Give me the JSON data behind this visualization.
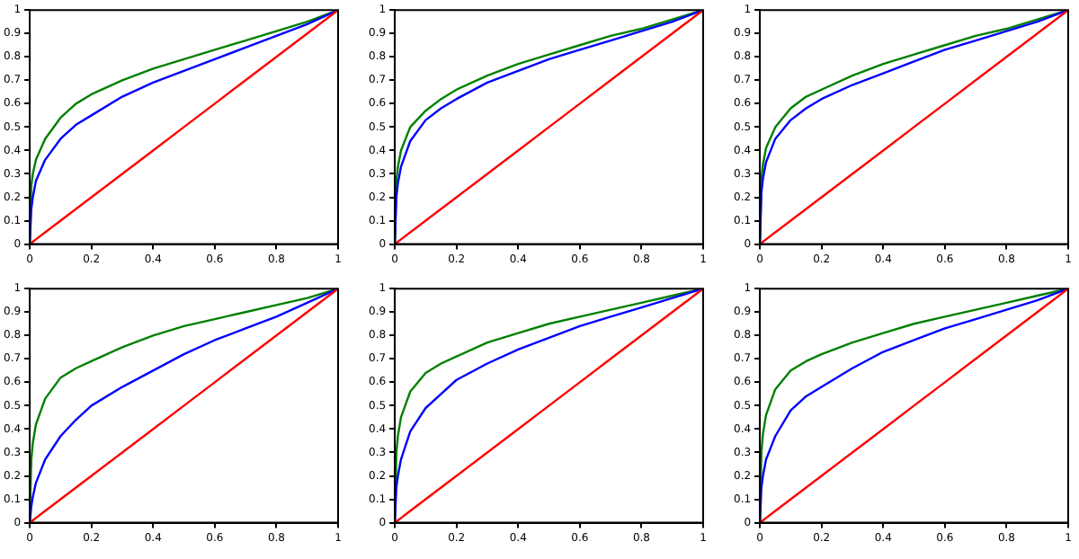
{
  "chart_data": [
    {
      "type": "line",
      "x": [
        0,
        0.005,
        0.01,
        0.02,
        0.05,
        0.1,
        0.15,
        0.2,
        0.3,
        0.4,
        0.5,
        0.6,
        0.7,
        0.8,
        0.9,
        1
      ],
      "xlim": [
        0,
        1
      ],
      "ylim": [
        0,
        1
      ],
      "xticks": [
        0,
        0.2,
        0.4,
        0.6,
        0.8,
        1
      ],
      "yticks": [
        0,
        0.1,
        0.2,
        0.3,
        0.4,
        0.5,
        0.6,
        0.7,
        0.8,
        0.9,
        1
      ],
      "series": [
        {
          "color": "#ff0000",
          "values": [
            0,
            0.005,
            0.01,
            0.02,
            0.05,
            0.1,
            0.15,
            0.2,
            0.3,
            0.4,
            0.5,
            0.6,
            0.7,
            0.8,
            0.9,
            1
          ]
        },
        {
          "color": "#0000ff",
          "values": [
            0,
            0.15,
            0.2,
            0.27,
            0.36,
            0.45,
            0.51,
            0.55,
            0.63,
            0.69,
            0.74,
            0.79,
            0.84,
            0.89,
            0.94,
            1
          ]
        },
        {
          "color": "#008000",
          "values": [
            0,
            0.25,
            0.3,
            0.36,
            0.45,
            0.54,
            0.6,
            0.64,
            0.7,
            0.75,
            0.79,
            0.83,
            0.87,
            0.91,
            0.95,
            1
          ]
        }
      ]
    },
    {
      "type": "line",
      "x": [
        0,
        0.005,
        0.01,
        0.02,
        0.05,
        0.1,
        0.15,
        0.2,
        0.3,
        0.4,
        0.5,
        0.6,
        0.7,
        0.8,
        0.9,
        1
      ],
      "xlim": [
        0,
        1
      ],
      "ylim": [
        0,
        1
      ],
      "xticks": [
        0,
        0.2,
        0.4,
        0.6,
        0.8,
        1
      ],
      "yticks": [
        0,
        0.1,
        0.2,
        0.3,
        0.4,
        0.5,
        0.6,
        0.7,
        0.8,
        0.9,
        1
      ],
      "series": [
        {
          "color": "#ff0000",
          "values": [
            0,
            0.005,
            0.01,
            0.02,
            0.05,
            0.1,
            0.15,
            0.2,
            0.3,
            0.4,
            0.5,
            0.6,
            0.7,
            0.8,
            0.9,
            1
          ]
        },
        {
          "color": "#0000ff",
          "values": [
            0,
            0.2,
            0.26,
            0.33,
            0.44,
            0.53,
            0.58,
            0.62,
            0.69,
            0.74,
            0.79,
            0.83,
            0.87,
            0.91,
            0.95,
            1
          ]
        },
        {
          "color": "#008000",
          "values": [
            0,
            0.27,
            0.33,
            0.4,
            0.5,
            0.57,
            0.62,
            0.66,
            0.72,
            0.77,
            0.81,
            0.85,
            0.89,
            0.92,
            0.96,
            1
          ]
        }
      ]
    },
    {
      "type": "line",
      "x": [
        0,
        0.005,
        0.01,
        0.02,
        0.05,
        0.1,
        0.15,
        0.2,
        0.3,
        0.4,
        0.5,
        0.6,
        0.7,
        0.8,
        0.9,
        1
      ],
      "xlim": [
        0,
        1
      ],
      "ylim": [
        0,
        1
      ],
      "xticks": [
        0,
        0.2,
        0.4,
        0.6,
        0.8,
        1
      ],
      "yticks": [
        0,
        0.1,
        0.2,
        0.3,
        0.4,
        0.5,
        0.6,
        0.7,
        0.8,
        0.9,
        1
      ],
      "series": [
        {
          "color": "#ff0000",
          "values": [
            0,
            0.005,
            0.01,
            0.02,
            0.05,
            0.1,
            0.15,
            0.2,
            0.3,
            0.4,
            0.5,
            0.6,
            0.7,
            0.8,
            0.9,
            1
          ]
        },
        {
          "color": "#0000ff",
          "values": [
            0,
            0.22,
            0.28,
            0.35,
            0.45,
            0.53,
            0.58,
            0.62,
            0.68,
            0.73,
            0.78,
            0.83,
            0.87,
            0.91,
            0.95,
            1
          ]
        },
        {
          "color": "#008000",
          "values": [
            0,
            0.28,
            0.34,
            0.41,
            0.5,
            0.58,
            0.63,
            0.66,
            0.72,
            0.77,
            0.81,
            0.85,
            0.89,
            0.92,
            0.96,
            1
          ]
        }
      ]
    },
    {
      "type": "line",
      "x": [
        0,
        0.005,
        0.01,
        0.02,
        0.05,
        0.1,
        0.15,
        0.2,
        0.3,
        0.4,
        0.5,
        0.6,
        0.7,
        0.8,
        0.9,
        1
      ],
      "xlim": [
        0,
        1
      ],
      "ylim": [
        0,
        1
      ],
      "xticks": [
        0,
        0.2,
        0.4,
        0.6,
        0.8,
        1
      ],
      "yticks": [
        0,
        0.1,
        0.2,
        0.3,
        0.4,
        0.5,
        0.6,
        0.7,
        0.8,
        0.9,
        1
      ],
      "series": [
        {
          "color": "#ff0000",
          "values": [
            0,
            0.005,
            0.01,
            0.02,
            0.05,
            0.1,
            0.15,
            0.2,
            0.3,
            0.4,
            0.5,
            0.6,
            0.7,
            0.8,
            0.9,
            1
          ]
        },
        {
          "color": "#0000ff",
          "values": [
            0,
            0.07,
            0.11,
            0.17,
            0.27,
            0.37,
            0.44,
            0.5,
            0.58,
            0.65,
            0.72,
            0.78,
            0.83,
            0.88,
            0.94,
            1
          ]
        },
        {
          "color": "#008000",
          "values": [
            0,
            0.27,
            0.34,
            0.42,
            0.53,
            0.62,
            0.66,
            0.69,
            0.75,
            0.8,
            0.84,
            0.87,
            0.9,
            0.93,
            0.96,
            1
          ]
        }
      ]
    },
    {
      "type": "line",
      "x": [
        0,
        0.005,
        0.01,
        0.02,
        0.05,
        0.1,
        0.15,
        0.2,
        0.3,
        0.4,
        0.5,
        0.6,
        0.7,
        0.8,
        0.9,
        1
      ],
      "xlim": [
        0,
        1
      ],
      "ylim": [
        0,
        1
      ],
      "xticks": [
        0,
        0.2,
        0.4,
        0.6,
        0.8,
        1
      ],
      "yticks": [
        0,
        0.1,
        0.2,
        0.3,
        0.4,
        0.5,
        0.6,
        0.7,
        0.8,
        0.9,
        1
      ],
      "series": [
        {
          "color": "#ff0000",
          "values": [
            0,
            0.005,
            0.01,
            0.02,
            0.05,
            0.1,
            0.15,
            0.2,
            0.3,
            0.4,
            0.5,
            0.6,
            0.7,
            0.8,
            0.9,
            1
          ]
        },
        {
          "color": "#0000ff",
          "values": [
            0,
            0.15,
            0.2,
            0.27,
            0.39,
            0.49,
            0.55,
            0.61,
            0.68,
            0.74,
            0.79,
            0.84,
            0.88,
            0.92,
            0.96,
            1
          ]
        },
        {
          "color": "#008000",
          "values": [
            0,
            0.3,
            0.37,
            0.45,
            0.56,
            0.64,
            0.68,
            0.71,
            0.77,
            0.81,
            0.85,
            0.88,
            0.91,
            0.94,
            0.97,
            1
          ]
        }
      ]
    },
    {
      "type": "line",
      "x": [
        0,
        0.005,
        0.01,
        0.02,
        0.05,
        0.1,
        0.15,
        0.2,
        0.3,
        0.4,
        0.5,
        0.6,
        0.7,
        0.8,
        0.9,
        1
      ],
      "xlim": [
        0,
        1
      ],
      "ylim": [
        0,
        1
      ],
      "xticks": [
        0,
        0.2,
        0.4,
        0.6,
        0.8,
        1
      ],
      "yticks": [
        0,
        0.1,
        0.2,
        0.3,
        0.4,
        0.5,
        0.6,
        0.7,
        0.8,
        0.9,
        1
      ],
      "series": [
        {
          "color": "#ff0000",
          "values": [
            0,
            0.005,
            0.01,
            0.02,
            0.05,
            0.1,
            0.15,
            0.2,
            0.3,
            0.4,
            0.5,
            0.6,
            0.7,
            0.8,
            0.9,
            1
          ]
        },
        {
          "color": "#0000ff",
          "values": [
            0,
            0.15,
            0.2,
            0.27,
            0.37,
            0.48,
            0.54,
            0.58,
            0.66,
            0.73,
            0.78,
            0.83,
            0.87,
            0.91,
            0.95,
            1
          ]
        },
        {
          "color": "#008000",
          "values": [
            0,
            0.3,
            0.38,
            0.46,
            0.57,
            0.65,
            0.69,
            0.72,
            0.77,
            0.81,
            0.85,
            0.88,
            0.91,
            0.94,
            0.97,
            1
          ]
        }
      ]
    }
  ]
}
